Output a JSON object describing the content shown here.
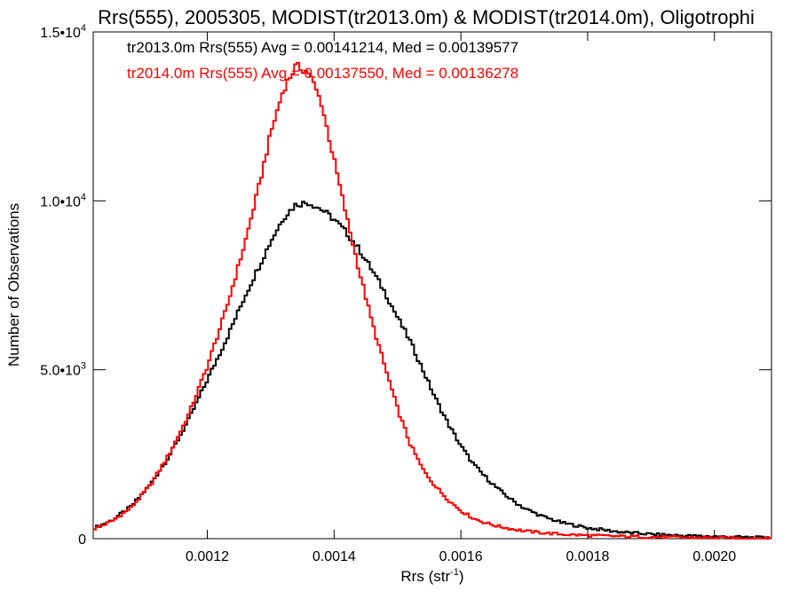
{
  "chart_data": {
    "type": "line",
    "title": "Rrs(555), 2005305, MODIST(tr2013.0m) & MODIST(tr2014.0m), Oligotrophi",
    "xlabel_main": "Rrs (str",
    "xlabel_sup": "-1",
    "xlabel_end": ")",
    "ylabel": "Number of Observations",
    "xlim": [
      0.00102,
      0.00209
    ],
    "ylim": [
      0,
      15000
    ],
    "x_ticks": [
      {
        "value": 0.0012,
        "label": "0.0012"
      },
      {
        "value": 0.0014,
        "label": "0.0014"
      },
      {
        "value": 0.0016,
        "label": "0.0016"
      },
      {
        "value": 0.0018,
        "label": "0.0018"
      },
      {
        "value": 0.002,
        "label": "0.0020"
      }
    ],
    "y_ticks": [
      {
        "value": 0,
        "base": "0",
        "exp": ""
      },
      {
        "value": 5000,
        "base": "5.0•10",
        "exp": "3"
      },
      {
        "value": 10000,
        "base": "1.0•10",
        "exp": "4"
      },
      {
        "value": 15000,
        "base": "1.5•10",
        "exp": "4"
      }
    ],
    "legend": [
      "tr2013.0m Rrs(555) Avg = 0.00141214, Med = 0.00139577",
      "tr2014.0m Rrs(555) Avg = 0.00137550, Med = 0.00136278"
    ],
    "legend_position": "top-left",
    "series": [
      {
        "color": "#000000",
        "points": [
          [
            0.00102,
            300
          ],
          [
            0.00105,
            550
          ],
          [
            0.00108,
            950
          ],
          [
            0.00111,
            1600
          ],
          [
            0.00114,
            2450
          ],
          [
            0.00117,
            3500
          ],
          [
            0.0012,
            4700
          ],
          [
            0.00123,
            5900
          ],
          [
            0.00126,
            7200
          ],
          [
            0.00128,
            8000
          ],
          [
            0.0013,
            8800
          ],
          [
            0.00132,
            9500
          ],
          [
            0.00134,
            9900
          ],
          [
            0.00136,
            9950
          ],
          [
            0.00138,
            9750
          ],
          [
            0.0014,
            9450
          ],
          [
            0.00142,
            9050
          ],
          [
            0.00144,
            8550
          ],
          [
            0.00146,
            7950
          ],
          [
            0.00148,
            7300
          ],
          [
            0.0015,
            6550
          ],
          [
            0.00152,
            5850
          ],
          [
            0.00154,
            5000
          ],
          [
            0.00156,
            4150
          ],
          [
            0.00158,
            3400
          ],
          [
            0.0016,
            2750
          ],
          [
            0.00162,
            2200
          ],
          [
            0.00164,
            1800
          ],
          [
            0.00166,
            1450
          ],
          [
            0.00168,
            1150
          ],
          [
            0.0017,
            900
          ],
          [
            0.00173,
            650
          ],
          [
            0.00176,
            470
          ],
          [
            0.0018,
            320
          ],
          [
            0.00185,
            200
          ],
          [
            0.0019,
            130
          ],
          [
            0.00195,
            90
          ],
          [
            0.002,
            65
          ],
          [
            0.00205,
            40
          ],
          [
            0.00209,
            25
          ]
        ]
      },
      {
        "color": "#ff0000",
        "points": [
          [
            0.00102,
            280
          ],
          [
            0.00105,
            520
          ],
          [
            0.00108,
            920
          ],
          [
            0.00111,
            1580
          ],
          [
            0.00114,
            2500
          ],
          [
            0.00117,
            3650
          ],
          [
            0.0012,
            5100
          ],
          [
            0.00123,
            6800
          ],
          [
            0.00126,
            8800
          ],
          [
            0.00128,
            10300
          ],
          [
            0.0013,
            12000
          ],
          [
            0.00132,
            13300
          ],
          [
            0.00134,
            14000
          ],
          [
            0.00136,
            13800
          ],
          [
            0.00138,
            12900
          ],
          [
            0.0014,
            11200
          ],
          [
            0.00142,
            9500
          ],
          [
            0.00144,
            7900
          ],
          [
            0.00146,
            6400
          ],
          [
            0.00148,
            5100
          ],
          [
            0.0015,
            3850
          ],
          [
            0.00152,
            2800
          ],
          [
            0.00154,
            2050
          ],
          [
            0.00156,
            1550
          ],
          [
            0.00158,
            1150
          ],
          [
            0.0016,
            830
          ],
          [
            0.00162,
            600
          ],
          [
            0.00164,
            460
          ],
          [
            0.00166,
            360
          ],
          [
            0.00168,
            290
          ],
          [
            0.0017,
            230
          ],
          [
            0.00173,
            170
          ],
          [
            0.00176,
            130
          ],
          [
            0.0018,
            95
          ],
          [
            0.00185,
            70
          ],
          [
            0.0019,
            50
          ],
          [
            0.00195,
            35
          ],
          [
            0.002,
            25
          ],
          [
            0.00205,
            18
          ],
          [
            0.00209,
            12
          ]
        ]
      }
    ]
  }
}
